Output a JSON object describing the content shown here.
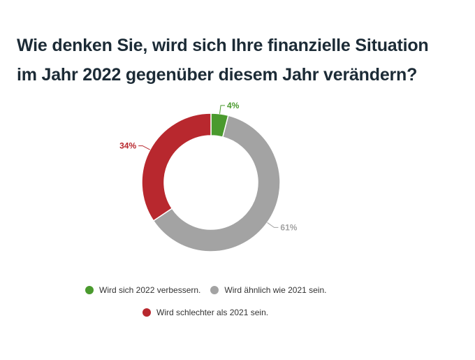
{
  "title": {
    "line1": "Wie denken Sie, wird sich Ihre finanzielle Situation",
    "line2": "im Jahr 2022 gegenüber diesem Jahr verändern?"
  },
  "chart_data": {
    "type": "pie",
    "donut": true,
    "legend_position": "bottom",
    "slices": [
      {
        "name": "Wird sich 2022 verbessern.",
        "value": 4,
        "label": "4%",
        "color": "#4a9a2e"
      },
      {
        "name": "Wird ähnlich wie 2021 sein.",
        "value": 61,
        "label": "61%",
        "color": "#a3a3a3"
      },
      {
        "name": "Wird schlechter als 2021 sein.",
        "value": 34,
        "label": "34%",
        "color": "#b8282e"
      }
    ]
  }
}
